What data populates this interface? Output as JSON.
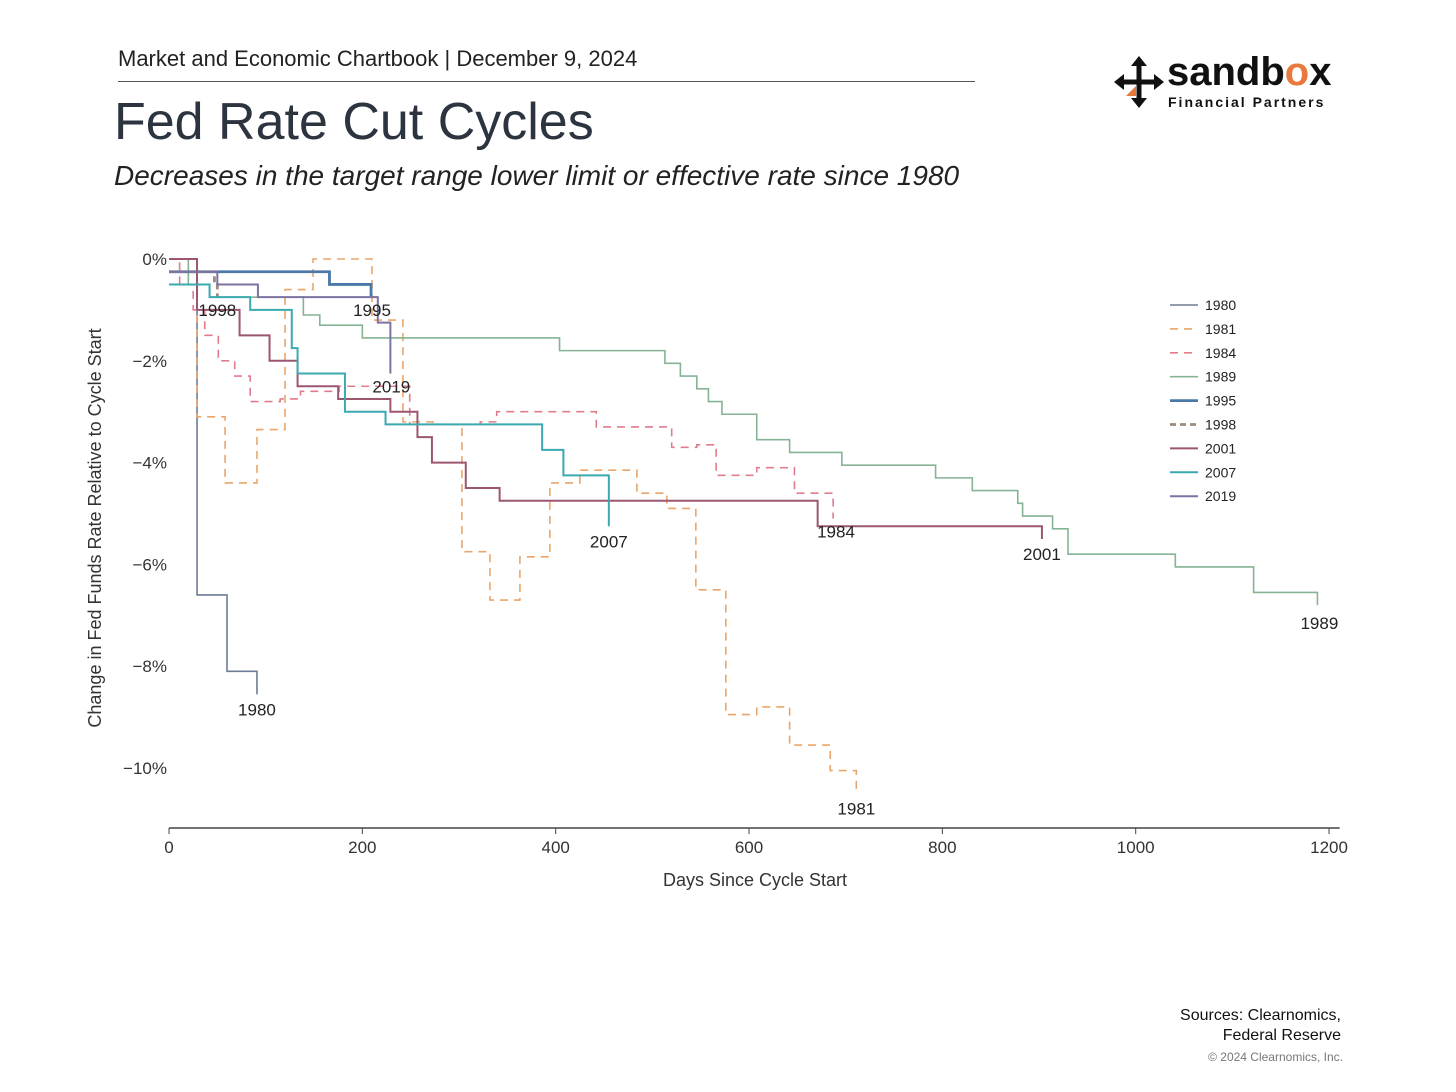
{
  "header": {
    "text": "Market and Economic Chartbook | December 9, 2024"
  },
  "logo": {
    "word_a": "sandb",
    "word_o": "o",
    "word_b": "x",
    "sub": "Financial Partners",
    "accent": "#e8783c"
  },
  "footer": {
    "source_line1": "Sources: Clearnomics,",
    "source_line2": "Federal Reserve",
    "copyright": "© 2024 Clearnomics, Inc."
  },
  "chart_data": {
    "type": "line",
    "title": "Fed Rate Cut Cycles",
    "subtitle": "Decreases in the target range lower limit or effective rate since 1980",
    "xlabel": "Days Since Cycle Start",
    "ylabel": "Change in Fed Funds Rate Relative to Cycle Start",
    "xlim": [
      0,
      1211
    ],
    "ylim": [
      -11.18,
      0.2
    ],
    "xticks": [
      0,
      200,
      400,
      600,
      800,
      1000,
      1200
    ],
    "yticks": [
      0,
      -2,
      -4,
      -6,
      -8,
      -10
    ],
    "ytick_labels": [
      "0%",
      "−2%",
      "−4%",
      "−6%",
      "−8%",
      "−10%"
    ],
    "grid": false,
    "legend_position": "right",
    "step": true,
    "series": [
      {
        "name": "1980",
        "color": "#6e7b95",
        "dash": "",
        "width": 1.6,
        "points": [
          [
            0,
            0
          ],
          [
            29,
            -6.6
          ],
          [
            60,
            -8.1
          ],
          [
            91,
            -8.55
          ]
        ],
        "label_at": [
          91,
          -8.85
        ]
      },
      {
        "name": "1981",
        "color": "#eaa56a",
        "dash": "8,6",
        "width": 1.6,
        "points": [
          [
            0,
            0
          ],
          [
            29,
            -3.1
          ],
          [
            58,
            -4.4
          ],
          [
            91,
            -3.35
          ],
          [
            120,
            -0.6
          ],
          [
            149,
            0
          ],
          [
            210,
            -1.2
          ],
          [
            242,
            -3.2
          ],
          [
            273,
            -3.25
          ],
          [
            303,
            -5.75
          ],
          [
            332,
            -6.7
          ],
          [
            363,
            -5.85
          ],
          [
            394,
            -4.4
          ],
          [
            425,
            -4.15
          ],
          [
            453,
            -4.15
          ],
          [
            484,
            -4.6
          ],
          [
            515,
            -4.9
          ],
          [
            545,
            -6.5
          ],
          [
            576,
            -8.95
          ],
          [
            608,
            -8.8
          ],
          [
            642,
            -9.55
          ],
          [
            684,
            -10.05
          ],
          [
            711,
            -10.45
          ]
        ],
        "label_at": [
          711,
          -10.8
        ]
      },
      {
        "name": "1984",
        "color": "#e07c8c",
        "dash": "8,6",
        "width": 1.6,
        "points": [
          [
            0,
            0
          ],
          [
            11,
            -0.5
          ],
          [
            25,
            -1.0
          ],
          [
            37,
            -1.5
          ],
          [
            51,
            -2.0
          ],
          [
            68,
            -2.3
          ],
          [
            84,
            -2.8
          ],
          [
            115,
            -2.75
          ],
          [
            136,
            -2.6
          ],
          [
            176,
            -2.5
          ],
          [
            249,
            -3.25
          ],
          [
            322,
            -3.2
          ],
          [
            339,
            -3.0
          ],
          [
            442,
            -3.3
          ],
          [
            520,
            -3.7
          ],
          [
            546,
            -3.65
          ],
          [
            566,
            -4.25
          ],
          [
            608,
            -4.1
          ],
          [
            647,
            -4.6
          ],
          [
            687,
            -5.1
          ]
        ],
        "label_at": [
          690,
          -5.35
        ]
      },
      {
        "name": "1989",
        "color": "#85b393",
        "dash": "",
        "width": 1.6,
        "points": [
          [
            0,
            0
          ],
          [
            20,
            -0.5
          ],
          [
            42,
            -0.75
          ],
          [
            139,
            -1.1
          ],
          [
            156,
            -1.3
          ],
          [
            200,
            -1.55
          ],
          [
            404,
            -1.8
          ],
          [
            513,
            -2.05
          ],
          [
            529,
            -2.3
          ],
          [
            546,
            -2.55
          ],
          [
            558,
            -2.8
          ],
          [
            572,
            -3.05
          ],
          [
            608,
            -3.55
          ],
          [
            642,
            -3.8
          ],
          [
            696,
            -4.05
          ],
          [
            793,
            -4.3
          ],
          [
            831,
            -4.55
          ],
          [
            878,
            -4.8
          ],
          [
            883,
            -5.05
          ],
          [
            914,
            -5.3
          ],
          [
            930,
            -5.8
          ],
          [
            1041,
            -6.05
          ],
          [
            1122,
            -6.55
          ],
          [
            1188,
            -6.8
          ]
        ],
        "label_at": [
          1190,
          -7.15
        ]
      },
      {
        "name": "1995",
        "color": "#4a78a8",
        "dash": "",
        "width": 2.8,
        "points": [
          [
            0,
            -0.25
          ],
          [
            166,
            -0.5
          ],
          [
            209,
            -0.75
          ]
        ],
        "label_at": [
          210,
          -1.0
        ]
      },
      {
        "name": "1998",
        "color": "#9b8b7b",
        "dash": "6,4",
        "width": 2.8,
        "points": [
          [
            0,
            -0.25
          ],
          [
            47,
            -0.5
          ],
          [
            50,
            -0.75
          ]
        ],
        "label_at": [
          50,
          -1.0
        ]
      },
      {
        "name": "2001",
        "color": "#9c5670",
        "dash": "",
        "width": 2,
        "points": [
          [
            0,
            0
          ],
          [
            29,
            -1.0
          ],
          [
            73,
            -1.5
          ],
          [
            104,
            -2.0
          ],
          [
            133,
            -2.5
          ],
          [
            175,
            -2.75
          ],
          [
            229,
            -3.0
          ],
          [
            257,
            -3.5
          ],
          [
            272,
            -4.0
          ],
          [
            307,
            -4.5
          ],
          [
            342,
            -4.75
          ],
          [
            671,
            -5.25
          ],
          [
            903,
            -5.5
          ]
        ],
        "label_at": [
          903,
          -5.8
        ]
      },
      {
        "name": "2007",
        "color": "#3aa9b0",
        "dash": "",
        "width": 2,
        "points": [
          [
            0,
            -0.5
          ],
          [
            42,
            -0.75
          ],
          [
            84,
            -1.0
          ],
          [
            127,
            -1.75
          ],
          [
            133,
            -2.25
          ],
          [
            182,
            -3.0
          ],
          [
            224,
            -3.25
          ],
          [
            386,
            -3.75
          ],
          [
            408,
            -4.25
          ],
          [
            455,
            -5.25
          ]
        ],
        "label_at": [
          455,
          -5.55
        ]
      },
      {
        "name": "2019",
        "color": "#7d73a2",
        "dash": "",
        "width": 2,
        "points": [
          [
            0,
            -0.25
          ],
          [
            50,
            -0.5
          ],
          [
            92,
            -0.75
          ],
          [
            216,
            -1.25
          ],
          [
            229,
            -2.25
          ]
        ],
        "label_at": [
          230,
          -2.5
        ]
      }
    ]
  }
}
